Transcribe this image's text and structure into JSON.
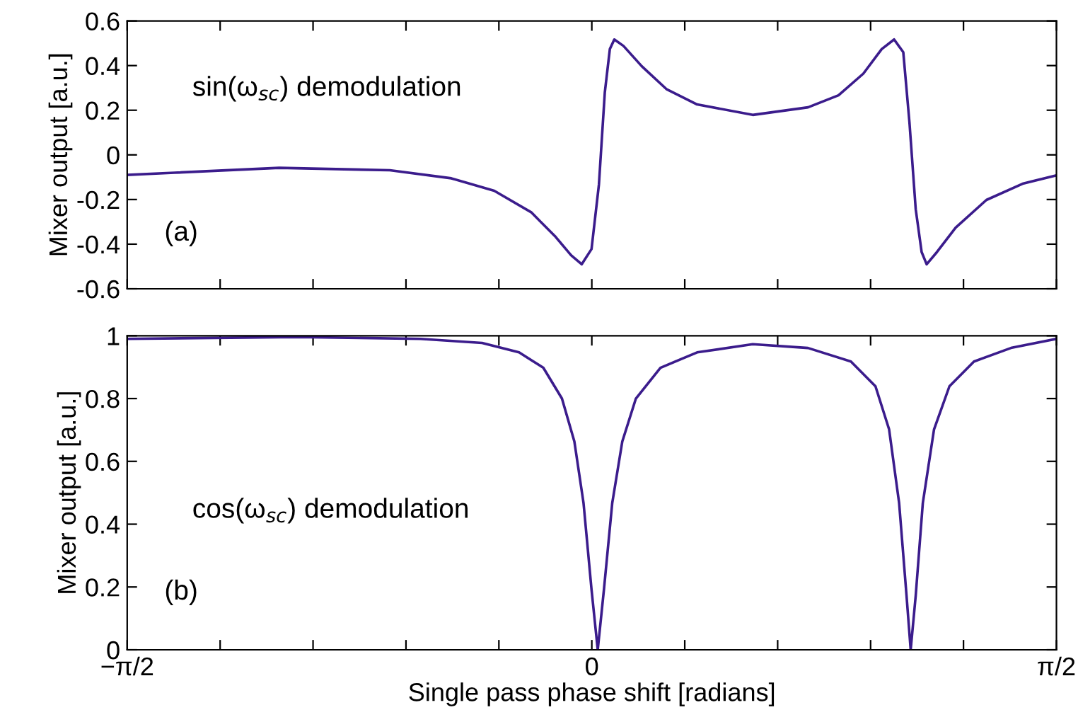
{
  "chart_data": [
    {
      "type": "line",
      "ylabel": "Mixer output [a.u.]",
      "annotations": [
        "sin(ω$_{sc}$) demodulation",
        "(a)"
      ],
      "series": [
        {
          "color": "#3b1c8c",
          "x": [
            -1.5708,
            -1.411,
            -1.057,
            -0.683,
            -0.475,
            -0.33,
            -0.205,
            -0.122,
            -0.07,
            -0.034,
            -0.001,
            0.024,
            0.044,
            0.061,
            0.076,
            0.107,
            0.169,
            0.252,
            0.356,
            0.544,
            0.731,
            0.834,
            0.918,
            0.98,
            1.022,
            1.053,
            1.074,
            1.095,
            1.115,
            1.132,
            1.167,
            1.23,
            1.334,
            1.459,
            1.5708
          ],
          "values": [
            -0.09,
            -0.08,
            -0.058,
            -0.069,
            -0.105,
            -0.161,
            -0.257,
            -0.368,
            -0.45,
            -0.49,
            -0.422,
            -0.133,
            0.281,
            0.474,
            0.517,
            0.488,
            0.397,
            0.295,
            0.226,
            0.179,
            0.213,
            0.267,
            0.364,
            0.474,
            0.517,
            0.46,
            0.143,
            -0.243,
            -0.435,
            -0.49,
            -0.435,
            -0.326,
            -0.202,
            -0.128,
            -0.092
          ]
        }
      ],
      "xlim": [
        -1.5708,
        1.5708
      ],
      "xticks": [
        {
          "value": -1.5708,
          "label": null
        },
        {
          "value": -1.2566,
          "label": null
        },
        {
          "value": -0.9425,
          "label": null
        },
        {
          "value": -0.6283,
          "label": null
        },
        {
          "value": -0.3142,
          "label": null
        },
        {
          "value": 0,
          "label": null
        },
        {
          "value": 0.3142,
          "label": null
        },
        {
          "value": 0.6283,
          "label": null
        },
        {
          "value": 0.9425,
          "label": null
        },
        {
          "value": 1.2566,
          "label": null
        },
        {
          "value": 1.5708,
          "label": null
        }
      ],
      "ylim": [
        -0.6,
        0.6
      ],
      "yticks": [
        -0.6,
        -0.4,
        -0.2,
        0,
        0.2,
        0.4,
        0.6
      ],
      "tick_labels": "y",
      "grid": false,
      "legend": false
    },
    {
      "type": "line",
      "ylabel": "Mixer output [a.u.]",
      "xlabel": "Single pass phase shift [radians]",
      "annotations": [
        "cos(ω$_{sc}$) demodulation",
        "(b)"
      ],
      "series": [
        {
          "color": "#3b1c8c",
          "x": [
            -1.5708,
            -0.995,
            -0.579,
            -0.371,
            -0.246,
            -0.164,
            -0.101,
            -0.059,
            -0.028,
            -0.001,
            0.02,
            0.041,
            0.069,
            0.103,
            0.149,
            0.232,
            0.356,
            0.544,
            0.731,
            0.876,
            0.959,
            1.005,
            1.039,
            1.064,
            1.078,
            1.095,
            1.119,
            1.157,
            1.209,
            1.292,
            1.417,
            1.5708
          ],
          "values": [
            0.99,
            0.996,
            0.99,
            0.977,
            0.947,
            0.898,
            0.8,
            0.663,
            0.467,
            0.192,
            0,
            0.192,
            0.467,
            0.663,
            0.8,
            0.898,
            0.947,
            0.973,
            0.961,
            0.918,
            0.839,
            0.702,
            0.467,
            0.172,
            0,
            0.172,
            0.467,
            0.702,
            0.839,
            0.918,
            0.961,
            0.99
          ]
        }
      ],
      "xlim": [
        -1.5708,
        1.5708
      ],
      "xticks": [
        {
          "value": -1.5708,
          "label": "−π/2"
        },
        {
          "value": -1.2566,
          "label": null
        },
        {
          "value": -0.9425,
          "label": null
        },
        {
          "value": -0.6283,
          "label": null
        },
        {
          "value": -0.3142,
          "label": null
        },
        {
          "value": 0,
          "label": "0"
        },
        {
          "value": 0.3142,
          "label": null
        },
        {
          "value": 0.6283,
          "label": null
        },
        {
          "value": 0.9425,
          "label": null
        },
        {
          "value": 1.2566,
          "label": null
        },
        {
          "value": 1.5708,
          "label": "π/2"
        }
      ],
      "ylim": [
        0,
        1
      ],
      "yticks": [
        0,
        0.2,
        0.4,
        0.6,
        0.8,
        1
      ],
      "grid": false,
      "legend": false
    }
  ]
}
